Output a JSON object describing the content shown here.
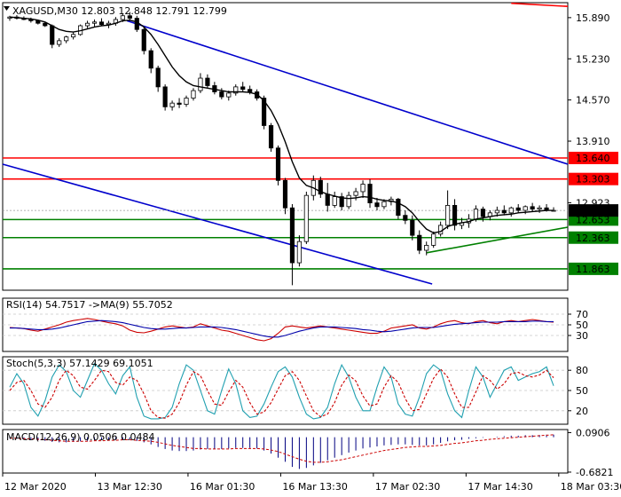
{
  "colors": {
    "background": "#ffffff",
    "frame": "#000000",
    "grid": "#c8c8c8",
    "channel": "#0000cc",
    "level_red": "#ff0000",
    "level_green": "#008000",
    "ma_line": "#000000",
    "rsi_line": "#cc0000",
    "rsi_ma": "#0000aa",
    "stoch_k": "#20a0b0",
    "stoch_d": "#cc0000",
    "macd_hist": "#000080",
    "macd_signal": "#cc0000",
    "price_box_bg": "#000000",
    "price_box_text": "#ffffff",
    "red_box_bg": "#ff0000",
    "green_box_bg": "#008000"
  },
  "header": {
    "symbol_line": "XAGUSD,M30  12.803 12.848 12.791 12.799",
    "rsi_label": "RSI(14) 54.7517  ->MA(9) 55.7052",
    "stoch_label": "Stoch(5,3,3) 57.1429 69.1051",
    "macd_label": "MACD(12,26,9) 0.0506 0.0484"
  },
  "icons": {
    "symbol_dropdown": "triangle-down-icon"
  },
  "chart_data": [
    {
      "type": "candlestick",
      "panel": "price",
      "ylim": [
        11.52,
        16.13
      ],
      "y_ticks": [
        "15.890",
        "15.230",
        "14.570",
        "13.910",
        "12.923"
      ],
      "tick_values": [
        15.89,
        15.23,
        14.57,
        13.91,
        12.923
      ],
      "candles": [
        [
          15.88,
          15.92,
          15.84,
          15.9
        ],
        [
          15.9,
          15.93,
          15.86,
          15.88
        ],
        [
          15.88,
          15.91,
          15.85,
          15.86
        ],
        [
          15.86,
          15.89,
          15.81,
          15.84
        ],
        [
          15.84,
          15.86,
          15.78,
          15.8
        ],
        [
          15.8,
          15.82,
          15.74,
          15.76
        ],
        [
          15.76,
          15.78,
          15.4,
          15.46
        ],
        [
          15.46,
          15.56,
          15.42,
          15.52
        ],
        [
          15.52,
          15.6,
          15.48,
          15.58
        ],
        [
          15.58,
          15.66,
          15.54,
          15.62
        ],
        [
          15.62,
          15.78,
          15.6,
          15.76
        ],
        [
          15.76,
          15.84,
          15.72,
          15.8
        ],
        [
          15.8,
          15.86,
          15.74,
          15.82
        ],
        [
          15.82,
          15.88,
          15.76,
          15.78
        ],
        [
          15.78,
          15.84,
          15.72,
          15.8
        ],
        [
          15.8,
          15.9,
          15.76,
          15.86
        ],
        [
          15.86,
          15.96,
          15.82,
          15.92
        ],
        [
          15.92,
          15.98,
          15.84,
          15.88
        ],
        [
          15.88,
          15.92,
          15.66,
          15.7
        ],
        [
          15.7,
          15.74,
          15.3,
          15.36
        ],
        [
          15.36,
          15.4,
          15.0,
          15.08
        ],
        [
          15.08,
          15.12,
          14.7,
          14.78
        ],
        [
          14.78,
          14.82,
          14.4,
          14.46
        ],
        [
          14.46,
          14.56,
          14.4,
          14.52
        ],
        [
          14.52,
          14.6,
          14.44,
          14.5
        ],
        [
          14.5,
          14.64,
          14.46,
          14.6
        ],
        [
          14.6,
          14.76,
          14.56,
          14.72
        ],
        [
          14.72,
          15.0,
          14.68,
          14.92
        ],
        [
          14.92,
          14.98,
          14.76,
          14.8
        ],
        [
          14.8,
          14.86,
          14.66,
          14.7
        ],
        [
          14.7,
          14.76,
          14.58,
          14.62
        ],
        [
          14.62,
          14.72,
          14.56,
          14.68
        ],
        [
          14.68,
          14.82,
          14.64,
          14.78
        ],
        [
          14.78,
          14.86,
          14.7,
          14.74
        ],
        [
          14.74,
          14.8,
          14.66,
          14.7
        ],
        [
          14.7,
          14.74,
          14.56,
          14.6
        ],
        [
          14.6,
          14.64,
          14.1,
          14.16
        ],
        [
          14.16,
          14.2,
          13.74,
          13.8
        ],
        [
          13.8,
          13.84,
          13.2,
          13.28
        ],
        [
          13.28,
          13.32,
          12.74,
          12.84
        ],
        [
          12.84,
          12.9,
          11.6,
          11.96
        ],
        [
          11.96,
          12.4,
          11.9,
          12.3
        ],
        [
          12.3,
          13.1,
          12.26,
          13.04
        ],
        [
          13.04,
          13.36,
          12.96,
          13.28
        ],
        [
          13.28,
          13.34,
          13.0,
          13.06
        ],
        [
          13.06,
          13.24,
          12.78,
          12.88
        ],
        [
          12.88,
          13.1,
          12.84,
          13.02
        ],
        [
          13.02,
          13.08,
          12.8,
          12.86
        ],
        [
          12.86,
          13.1,
          12.82,
          13.04
        ],
        [
          13.04,
          13.16,
          12.96,
          13.1
        ],
        [
          13.1,
          13.28,
          13.0,
          13.22
        ],
        [
          13.22,
          13.3,
          12.84,
          12.92
        ],
        [
          12.92,
          13.0,
          12.8,
          12.86
        ],
        [
          12.86,
          12.98,
          12.82,
          12.94
        ],
        [
          12.94,
          13.02,
          12.88,
          12.98
        ],
        [
          12.98,
          13.0,
          12.66,
          12.72
        ],
        [
          12.72,
          12.8,
          12.58,
          12.64
        ],
        [
          12.64,
          12.72,
          12.32,
          12.4
        ],
        [
          12.4,
          12.48,
          12.1,
          12.16
        ],
        [
          12.16,
          12.3,
          12.08,
          12.24
        ],
        [
          12.24,
          12.46,
          12.2,
          12.42
        ],
        [
          12.42,
          12.62,
          12.38,
          12.56
        ],
        [
          12.56,
          13.12,
          12.5,
          12.88
        ],
        [
          12.88,
          12.98,
          12.48,
          12.56
        ],
        [
          12.56,
          12.68,
          12.5,
          12.6
        ],
        [
          12.6,
          12.74,
          12.52,
          12.66
        ],
        [
          12.66,
          12.88,
          12.62,
          12.82
        ],
        [
          12.82,
          12.86,
          12.62,
          12.7
        ],
        [
          12.7,
          12.8,
          12.64,
          12.76
        ],
        [
          12.76,
          12.86,
          12.7,
          12.8
        ],
        [
          12.8,
          12.88,
          12.72,
          12.76
        ],
        [
          12.76,
          12.86,
          12.7,
          12.84
        ],
        [
          12.84,
          12.9,
          12.76,
          12.8
        ],
        [
          12.8,
          12.88,
          12.74,
          12.86
        ],
        [
          12.86,
          12.92,
          12.78,
          12.82
        ],
        [
          12.82,
          12.88,
          12.76,
          12.84
        ],
        [
          12.84,
          12.9,
          12.78,
          12.8
        ],
        [
          12.8,
          12.85,
          12.79,
          12.8
        ]
      ],
      "ma_line": [
        15.9,
        15.89,
        15.88,
        15.87,
        15.85,
        15.82,
        15.76,
        15.7,
        15.67,
        15.66,
        15.68,
        15.71,
        15.74,
        15.76,
        15.77,
        15.8,
        15.84,
        15.85,
        15.82,
        15.74,
        15.62,
        15.46,
        15.28,
        15.1,
        14.96,
        14.86,
        14.8,
        14.78,
        14.76,
        14.74,
        14.72,
        14.7,
        14.7,
        14.7,
        14.69,
        14.66,
        14.56,
        14.4,
        14.18,
        13.9,
        13.58,
        13.32,
        13.2,
        13.16,
        13.1,
        13.06,
        13.03,
        13.0,
        12.99,
        13.0,
        13.02,
        13.01,
        12.98,
        12.96,
        12.95,
        12.92,
        12.86,
        12.76,
        12.62,
        12.5,
        12.44,
        12.46,
        12.54,
        12.58,
        12.6,
        12.62,
        12.66,
        12.68,
        12.7,
        12.72,
        12.73,
        12.74,
        12.76,
        12.77,
        12.78,
        12.79,
        12.8,
        12.8
      ],
      "channel_upper": [
        [
          0.22,
          15.84
        ],
        [
          1.0,
          13.54
        ]
      ],
      "channel_lower": [
        [
          0.0,
          13.54
        ],
        [
          0.76,
          11.62
        ]
      ],
      "support_trend": [
        [
          0.75,
          12.12
        ],
        [
          1.0,
          12.53
        ]
      ],
      "resistance_short": [
        [
          0.7,
          13.3
        ],
        [
          1.0,
          13.3
        ]
      ],
      "red_upper_line": [
        [
          0.9,
          16.12
        ],
        [
          1.0,
          16.07
        ]
      ],
      "levels": [
        {
          "value": 13.64,
          "label": "13.640",
          "color": "red"
        },
        {
          "value": 13.303,
          "label": "13.303",
          "color": "red"
        },
        {
          "value": 12.653,
          "label": "12.653",
          "color": "green"
        },
        {
          "value": 12.363,
          "label": "12.363",
          "color": "green"
        },
        {
          "value": 11.863,
          "label": "11.863",
          "color": "green"
        }
      ],
      "current_price": {
        "value": 12.799,
        "label": "12.799"
      }
    },
    {
      "type": "line",
      "panel": "rsi",
      "ylim": [
        0,
        100
      ],
      "y_ticks": [
        "70",
        "50",
        "30"
      ],
      "tick_values": [
        70,
        50,
        30
      ],
      "series": [
        {
          "values": [
            45,
            44,
            43,
            40,
            38,
            42,
            46,
            50,
            55,
            58,
            60,
            62,
            60,
            57,
            54,
            52,
            48,
            40,
            36,
            35,
            38,
            42,
            46,
            48,
            46,
            44,
            46,
            52,
            48,
            44,
            40,
            38,
            34,
            30,
            26,
            22,
            20,
            24,
            34,
            46,
            48,
            46,
            44,
            46,
            48,
            46,
            44,
            42,
            40,
            38,
            36,
            34,
            34,
            38,
            44,
            46,
            48,
            50,
            44,
            42,
            46,
            52,
            56,
            58,
            54,
            52,
            56,
            58,
            54,
            52,
            56,
            58,
            56,
            58,
            60,
            58,
            56,
            55
          ]
        },
        {
          "values": [
            44,
            44,
            43,
            42,
            41,
            41,
            42,
            44,
            47,
            50,
            53,
            56,
            57,
            58,
            57,
            56,
            54,
            51,
            48,
            45,
            43,
            42,
            42,
            43,
            44,
            44,
            45,
            46,
            46,
            46,
            45,
            43,
            41,
            38,
            35,
            32,
            29,
            27,
            27,
            30,
            34,
            38,
            41,
            44,
            46,
            46,
            46,
            45,
            44,
            43,
            41,
            40,
            38,
            37,
            38,
            40,
            42,
            44,
            45,
            45,
            45,
            47,
            49,
            51,
            52,
            53,
            54,
            55,
            55,
            55,
            56,
            56,
            56,
            56,
            57,
            57,
            56,
            56
          ]
        }
      ]
    },
    {
      "type": "line",
      "panel": "stochastic",
      "ylim": [
        0,
        100
      ],
      "y_ticks": [
        "80",
        "50",
        "20"
      ],
      "tick_values": [
        80,
        50,
        20
      ],
      "series": [
        {
          "values": [
            55,
            75,
            60,
            25,
            12,
            35,
            70,
            88,
            78,
            50,
            40,
            65,
            90,
            80,
            60,
            45,
            72,
            85,
            40,
            12,
            8,
            8,
            10,
            25,
            60,
            88,
            80,
            50,
            20,
            15,
            50,
            82,
            60,
            20,
            10,
            12,
            30,
            55,
            78,
            85,
            70,
            40,
            15,
            8,
            10,
            25,
            60,
            88,
            70,
            40,
            20,
            20,
            55,
            85,
            70,
            30,
            15,
            12,
            40,
            75,
            88,
            80,
            45,
            20,
            10,
            50,
            85,
            70,
            40,
            60,
            80,
            85,
            65,
            70,
            75,
            78,
            85,
            57
          ]
        },
        {
          "values": [
            50,
            62,
            65,
            50,
            30,
            25,
            40,
            65,
            80,
            72,
            55,
            52,
            65,
            80,
            78,
            62,
            58,
            70,
            65,
            45,
            20,
            10,
            9,
            15,
            32,
            58,
            78,
            72,
            50,
            30,
            28,
            48,
            65,
            55,
            32,
            15,
            18,
            32,
            52,
            72,
            78,
            65,
            42,
            20,
            11,
            15,
            32,
            58,
            73,
            64,
            42,
            27,
            30,
            55,
            72,
            62,
            38,
            20,
            22,
            45,
            68,
            82,
            70,
            45,
            25,
            25,
            48,
            72,
            65,
            52,
            60,
            75,
            77,
            72,
            70,
            73,
            80,
            69
          ]
        }
      ]
    },
    {
      "type": "bar",
      "panel": "macd",
      "ylim": [
        -0.7,
        0.15
      ],
      "y_ticks": [
        "0.0906",
        "-0.6821"
      ],
      "tick_values": [
        0.0906,
        -0.6821
      ],
      "series": [
        {
          "values": [
            -0.02,
            -0.03,
            -0.04,
            -0.05,
            -0.06,
            -0.07,
            -0.09,
            -0.1,
            -0.1,
            -0.09,
            -0.08,
            -0.07,
            -0.06,
            -0.05,
            -0.05,
            -0.04,
            -0.04,
            -0.05,
            -0.07,
            -0.1,
            -0.14,
            -0.19,
            -0.23,
            -0.26,
            -0.27,
            -0.27,
            -0.26,
            -0.24,
            -0.23,
            -0.23,
            -0.23,
            -0.22,
            -0.21,
            -0.21,
            -0.21,
            -0.22,
            -0.26,
            -0.32,
            -0.4,
            -0.48,
            -0.58,
            -0.62,
            -0.6,
            -0.55,
            -0.5,
            -0.45,
            -0.4,
            -0.35,
            -0.3,
            -0.26,
            -0.22,
            -0.2,
            -0.18,
            -0.16,
            -0.15,
            -0.14,
            -0.14,
            -0.15,
            -0.16,
            -0.16,
            -0.14,
            -0.11,
            -0.08,
            -0.06,
            -0.05,
            -0.03,
            -0.02,
            -0.01,
            0.0,
            0.01,
            0.02,
            0.03,
            0.03,
            0.04,
            0.04,
            0.045,
            0.05,
            0.0506
          ]
        },
        {
          "values": [
            -0.02,
            -0.02,
            -0.03,
            -0.03,
            -0.04,
            -0.05,
            -0.06,
            -0.07,
            -0.08,
            -0.08,
            -0.08,
            -0.08,
            -0.07,
            -0.07,
            -0.06,
            -0.06,
            -0.05,
            -0.05,
            -0.06,
            -0.07,
            -0.08,
            -0.1,
            -0.13,
            -0.16,
            -0.18,
            -0.2,
            -0.22,
            -0.22,
            -0.23,
            -0.23,
            -0.23,
            -0.23,
            -0.22,
            -0.22,
            -0.22,
            -0.22,
            -0.23,
            -0.25,
            -0.28,
            -0.33,
            -0.38,
            -0.43,
            -0.47,
            -0.49,
            -0.49,
            -0.48,
            -0.46,
            -0.44,
            -0.41,
            -0.38,
            -0.35,
            -0.32,
            -0.29,
            -0.26,
            -0.24,
            -0.22,
            -0.2,
            -0.19,
            -0.18,
            -0.18,
            -0.17,
            -0.16,
            -0.14,
            -0.12,
            -0.11,
            -0.09,
            -0.07,
            -0.06,
            -0.04,
            -0.03,
            -0.02,
            -0.01,
            0.0,
            0.01,
            0.02,
            0.03,
            0.04,
            0.0484
          ]
        }
      ]
    }
  ],
  "x_axis": {
    "labels": [
      "12 Mar 2020",
      "13 Mar 12:30",
      "16 Mar 01:30",
      "16 Mar 13:30",
      "17 Mar 02:30",
      "17 Mar 14:30",
      "18 Mar 03:30"
    ],
    "positions": [
      0.0,
      0.164,
      0.328,
      0.492,
      0.656,
      0.82,
      0.984
    ]
  }
}
